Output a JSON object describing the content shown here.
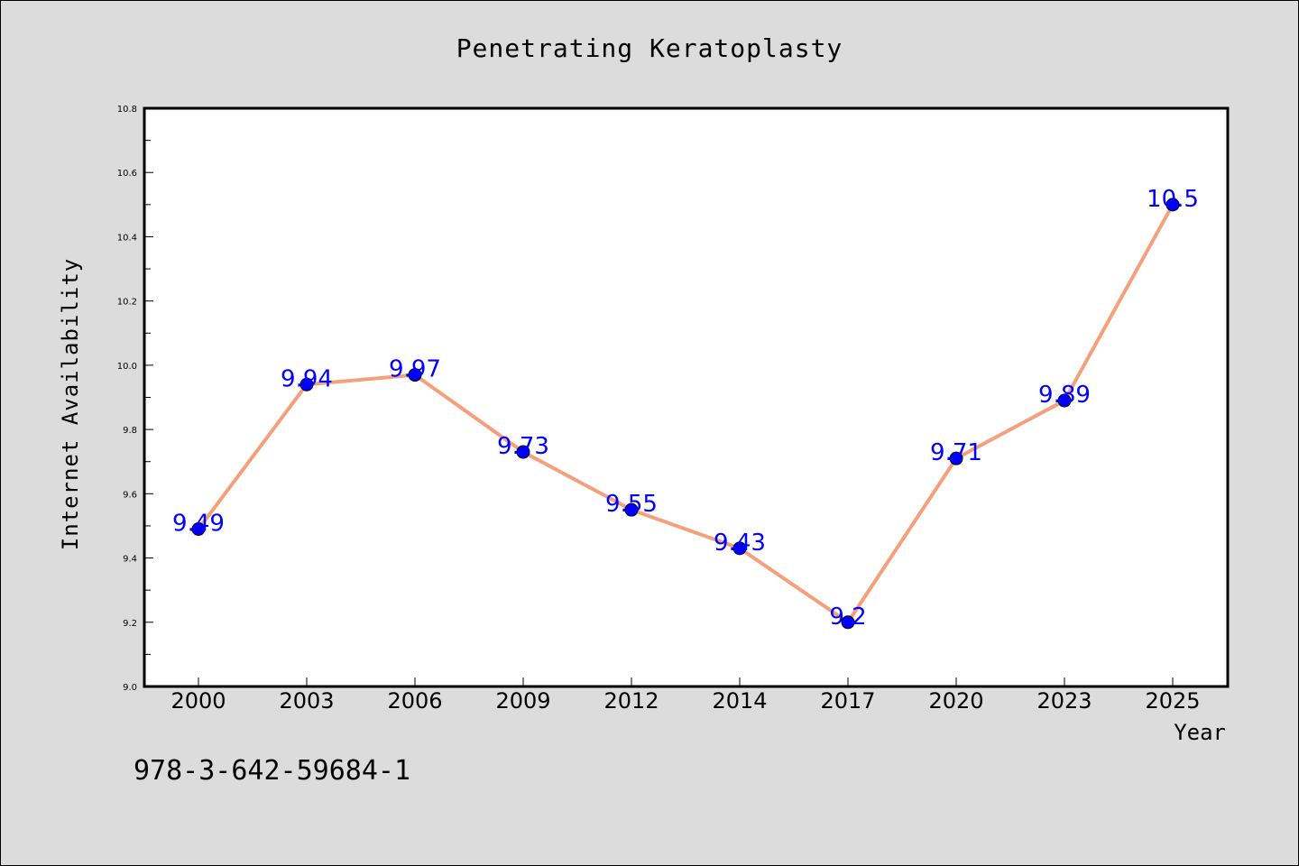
{
  "chart_data": {
    "type": "line",
    "title": "Penetrating Keratoplasty",
    "xlabel": "Year",
    "ylabel": "Internet Availability",
    "categories": [
      "2000",
      "2003",
      "2006",
      "2009",
      "2012",
      "2014",
      "2017",
      "2020",
      "2023",
      "2025"
    ],
    "values": [
      9.49,
      9.94,
      9.97,
      9.73,
      9.55,
      9.43,
      9.2,
      9.71,
      9.89,
      10.5
    ],
    "data_labels": [
      "9.49",
      "9.94",
      "9.97",
      "9.73",
      "9.55",
      "9.43",
      "9.2",
      "9.71",
      "9.89",
      "10.5"
    ],
    "ylim": [
      9.0,
      10.8
    ],
    "yticks": [
      "9.0",
      "9.2",
      "9.4",
      "9.6",
      "9.8",
      "10.0",
      "10.2",
      "10.4",
      "10.6",
      "10.8"
    ],
    "grid": false,
    "line_color": "#f4a07c",
    "marker_color": "#0000ff",
    "label_color": "#0000ff"
  },
  "annotation": "978-3-642-59684-1"
}
